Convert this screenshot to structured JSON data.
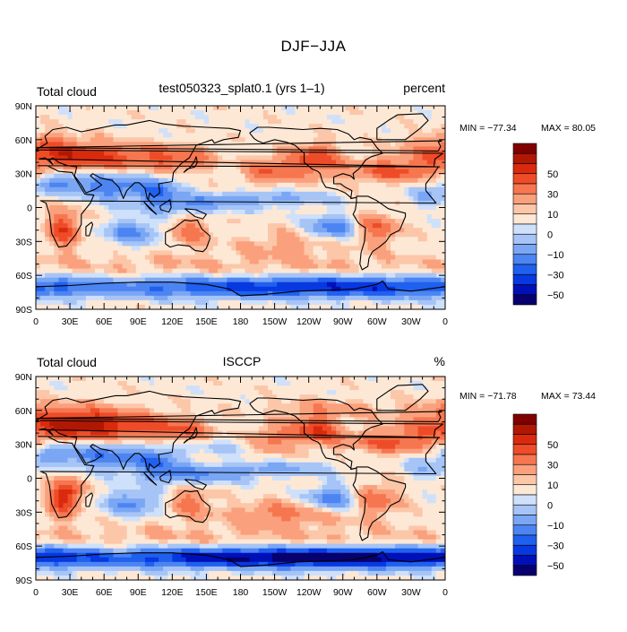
{
  "figure": {
    "title": "DJF−JJA"
  },
  "chart_data": [
    {
      "type": "heatmap",
      "title": "test050323_splat0.1 (yrs 1–1)",
      "left_label": "Total cloud",
      "units": "percent",
      "min_label": "MIN = −77.34",
      "max_label": "MAX =  80.05",
      "xlim": [
        0,
        360
      ],
      "ylim": [
        -90,
        90
      ],
      "x_ticks": [
        "0",
        "30E",
        "60E",
        "90E",
        "120E",
        "150E",
        "180",
        "150W",
        "120W",
        "90W",
        "60W",
        "30W",
        "0"
      ],
      "y_ticks": [
        "90N",
        "60N",
        "30N",
        "0",
        "30S",
        "60S",
        "90S"
      ],
      "colorbar_labels": [
        "50",
        "30",
        "10",
        "0",
        "−10",
        "−30",
        "−50"
      ]
    },
    {
      "type": "heatmap",
      "title": "ISCCP",
      "left_label": "Total cloud",
      "units": "%",
      "min_label": "MIN = −71.78",
      "max_label": "MAX =  73.44",
      "xlim": [
        0,
        360
      ],
      "ylim": [
        -90,
        90
      ],
      "x_ticks": [
        "0",
        "30E",
        "60E",
        "90E",
        "120E",
        "150E",
        "180",
        "150W",
        "120W",
        "90W",
        "60W",
        "30W",
        "0"
      ],
      "y_ticks": [
        "90N",
        "60N",
        "30N",
        "0",
        "30S",
        "60S",
        "90S"
      ],
      "colorbar_labels": [
        "50",
        "30",
        "10",
        "0",
        "−10",
        "−30",
        "−50"
      ]
    }
  ],
  "colorbar": {
    "levels": [
      -70,
      -60,
      -50,
      -40,
      -30,
      -20,
      -10,
      -5,
      5,
      10,
      20,
      30,
      40,
      50,
      60,
      70
    ],
    "colors": [
      "#08006e",
      "#0010b8",
      "#0838e0",
      "#2060ef",
      "#4c84f2",
      "#7aa6f4",
      "#a6c4f6",
      "#cfe0fa",
      "#fde8d6",
      "#fcc6a8",
      "#faa07c",
      "#f67650",
      "#ee4c28",
      "#d92a0e",
      "#b01804",
      "#800000"
    ]
  }
}
